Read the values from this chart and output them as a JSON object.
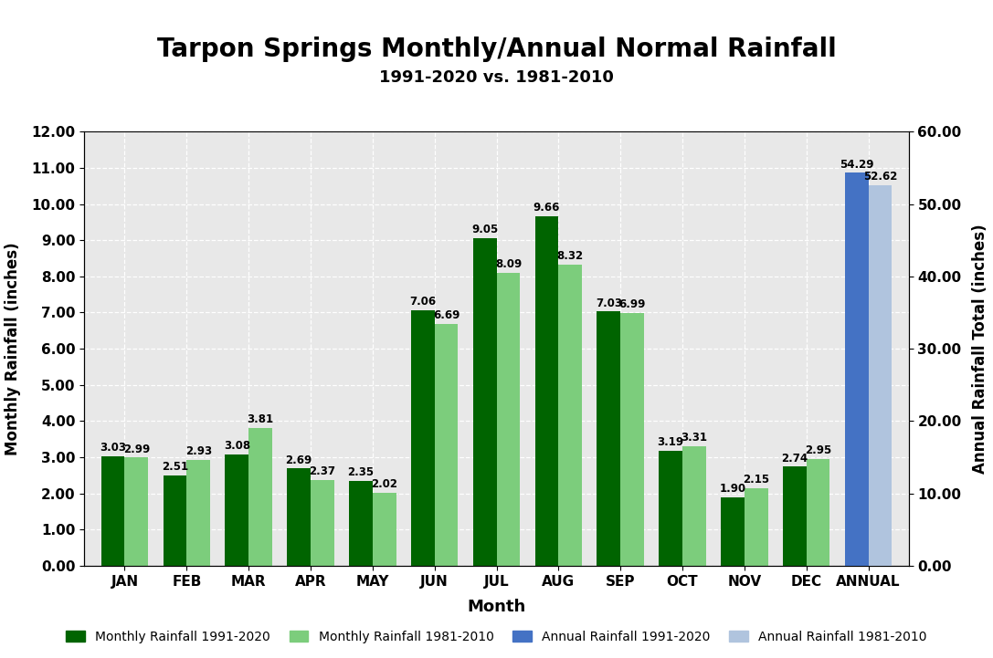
{
  "title": "Tarpon Springs Monthly/Annual Normal Rainfall",
  "subtitle": "1991-2020 vs. 1981-2010",
  "xlabel": "Month",
  "ylabel_left": "Monthly Rainfall (inches)",
  "ylabel_right": "Annual Rainfall Total (inches)",
  "months": [
    "JAN",
    "FEB",
    "MAR",
    "APR",
    "MAY",
    "JUN",
    "JUL",
    "AUG",
    "SEP",
    "OCT",
    "NOV",
    "DEC",
    "ANNUAL"
  ],
  "values_1991_2020_monthly": [
    3.03,
    2.51,
    3.08,
    2.69,
    2.35,
    7.06,
    9.05,
    9.66,
    7.03,
    3.19,
    1.9,
    2.74
  ],
  "values_1981_2010_monthly": [
    2.99,
    2.93,
    3.81,
    2.37,
    2.02,
    6.69,
    8.09,
    8.32,
    6.99,
    3.31,
    2.15,
    2.95
  ],
  "value_1991_2020_annual": 54.29,
  "value_1981_2010_annual": 52.62,
  "color_1991_2020_monthly": "#006400",
  "color_1981_2010_monthly": "#7CCD7C",
  "color_1991_2020_annual": "#4472C4",
  "color_1981_2010_annual": "#B0C4DE",
  "ylim_left": [
    0.0,
    12.0
  ],
  "ylim_right": [
    0.0,
    60.0
  ],
  "yticks_left": [
    0.0,
    1.0,
    2.0,
    3.0,
    4.0,
    5.0,
    6.0,
    7.0,
    8.0,
    9.0,
    10.0,
    11.0,
    12.0
  ],
  "yticks_right": [
    0.0,
    10.0,
    20.0,
    30.0,
    40.0,
    50.0,
    60.0
  ],
  "plot_bg_color": "#E8E8E8",
  "fig_bg_color": "#FFFFFF",
  "legend_labels": [
    "Monthly Rainfall 1991-2020",
    "Monthly Rainfall 1981-2010",
    "Annual Rainfall 1991-2020",
    "Annual Rainfall 1981-2010"
  ],
  "bar_width": 0.38,
  "label_fontsize": 8.5,
  "tick_fontsize": 11,
  "axis_label_fontsize": 12,
  "xlabel_fontsize": 13,
  "title_fontsize": 20,
  "subtitle_fontsize": 13
}
